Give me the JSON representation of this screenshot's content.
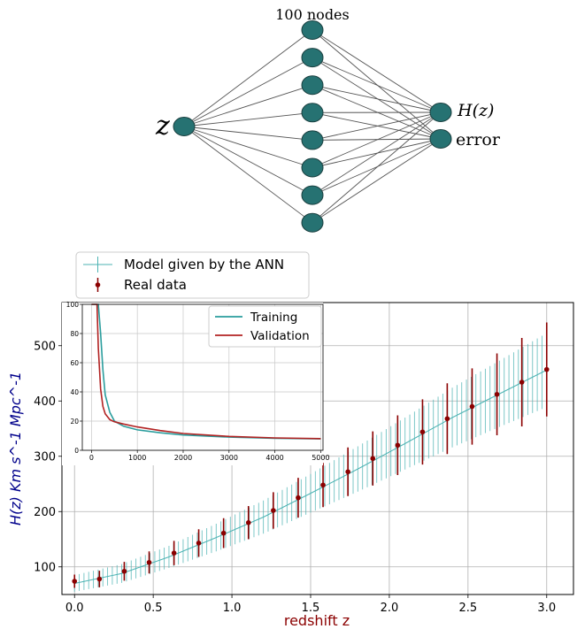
{
  "network": {
    "top_label": "100 nodes",
    "input_label": "z",
    "outputs": [
      "H(z)",
      "error"
    ],
    "hidden_node_count": 8,
    "node_color": "#267272"
  },
  "legend": {
    "model_label": "Model given by the ANN",
    "data_label": "Real data"
  },
  "chart_data": [
    {
      "type": "scatter",
      "xlabel": "redshift z",
      "ylabel": "H(z) Km s^-1 Mpc^-1",
      "xlim": [
        -0.08,
        3.17
      ],
      "ylim": [
        50,
        578
      ],
      "xticks": [
        0.0,
        0.5,
        1.0,
        1.5,
        2.0,
        2.5,
        3.0
      ],
      "yticks": [
        100,
        200,
        300,
        400,
        500
      ],
      "grid": true,
      "series": [
        {
          "name": "Model given by the ANN",
          "kind": "band",
          "color": "#4cb3b3",
          "x": [
            0.0,
            0.3,
            0.6,
            0.9,
            1.2,
            1.5,
            1.8,
            2.1,
            2.4,
            2.7,
            3.0
          ],
          "y": [
            70,
            88,
            118,
            153,
            190,
            233,
            277,
            323,
            370,
            413,
            456
          ],
          "err": [
            15,
            17,
            20,
            25,
            30,
            35,
            41,
            47,
            54,
            60,
            67
          ]
        },
        {
          "name": "Real data",
          "kind": "errorbar",
          "color": "#8b0000",
          "x": [
            0.0,
            0.158,
            0.316,
            0.474,
            0.632,
            0.789,
            0.947,
            1.105,
            1.263,
            1.421,
            1.579,
            1.737,
            1.895,
            2.053,
            2.211,
            2.368,
            2.526,
            2.684,
            2.842,
            3.0
          ],
          "y": [
            74,
            78,
            92,
            108,
            125,
            143,
            161,
            180,
            202,
            225,
            248,
            272,
            296,
            320,
            344,
            368,
            390,
            412,
            434,
            457
          ],
          "err": [
            12,
            15,
            17,
            20,
            22,
            25,
            27,
            30,
            33,
            36,
            40,
            44,
            49,
            54,
            59,
            64,
            69,
            74,
            80,
            85
          ]
        }
      ]
    },
    {
      "type": "line",
      "xlim": [
        -200,
        5050
      ],
      "ylim": [
        0,
        100
      ],
      "xticks": [
        0,
        1000,
        2000,
        3000,
        4000,
        5000
      ],
      "yticks": [
        0,
        20,
        40,
        60,
        80,
        100
      ],
      "legend_position": "top-right",
      "series": [
        {
          "name": "Training",
          "color": "#2a9d9d",
          "x": [
            0,
            150,
            200,
            250,
            300,
            400,
            500,
            700,
            1000,
            1500,
            2000,
            3000,
            4000,
            5000
          ],
          "y": [
            100,
            100,
            80,
            55,
            38,
            26,
            20,
            16.5,
            14,
            12,
            10.5,
            9,
            8.2,
            7.8
          ]
        },
        {
          "name": "Validation",
          "color": "#b22222",
          "x": [
            0,
            120,
            150,
            200,
            250,
            300,
            400,
            500,
            700,
            1000,
            1500,
            2000,
            3000,
            4000,
            5000
          ],
          "y": [
            100,
            100,
            70,
            42,
            30,
            25,
            21,
            19.5,
            18,
            16,
            13.5,
            11.5,
            9.5,
            8.5,
            8
          ]
        }
      ]
    }
  ]
}
